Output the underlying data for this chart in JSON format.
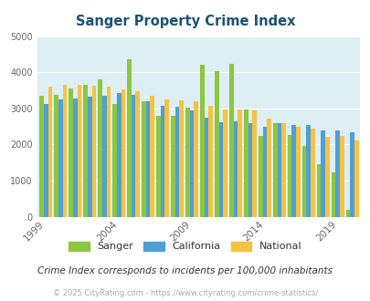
{
  "title": "Sanger Property Crime Index",
  "years": [
    1999,
    2000,
    2001,
    2002,
    2003,
    2004,
    2005,
    2006,
    2007,
    2008,
    2009,
    2010,
    2011,
    2012,
    2013,
    2014,
    2015,
    2016,
    2017,
    2018,
    2019,
    2020
  ],
  "sanger": [
    3350,
    3380,
    3550,
    3650,
    3800,
    3120,
    4350,
    3200,
    2800,
    2800,
    3010,
    4200,
    4020,
    4230,
    2960,
    2230,
    2580,
    2260,
    1970,
    1450,
    1220,
    200
  ],
  "california": [
    3120,
    3250,
    3280,
    3330,
    3340,
    3420,
    3380,
    3200,
    3070,
    3050,
    2950,
    2740,
    2620,
    2640,
    2600,
    2480,
    2600,
    2550,
    2530,
    2380,
    2380,
    2350
  ],
  "national": [
    3610,
    3660,
    3640,
    3630,
    3590,
    3520,
    3480,
    3340,
    3260,
    3210,
    3200,
    3060,
    2960,
    2970,
    2950,
    2710,
    2590,
    2490,
    2450,
    2220,
    2240,
    2120
  ],
  "sanger_color": "#8dc63f",
  "california_color": "#4f9fd5",
  "national_color": "#f5c242",
  "plot_bg": "#ddeef4",
  "title_color": "#1a5276",
  "subtitle": "Crime Index corresponds to incidents per 100,000 inhabitants",
  "footer": "© 2025 CityRating.com - https://www.cityrating.com/crime-statistics/",
  "ylim": [
    0,
    5000
  ],
  "yticks": [
    0,
    1000,
    2000,
    3000,
    4000,
    5000
  ],
  "xtick_labels": [
    "1999",
    "2004",
    "2009",
    "2014",
    "2019"
  ],
  "xtick_positions": [
    0,
    5,
    10,
    15,
    20
  ]
}
